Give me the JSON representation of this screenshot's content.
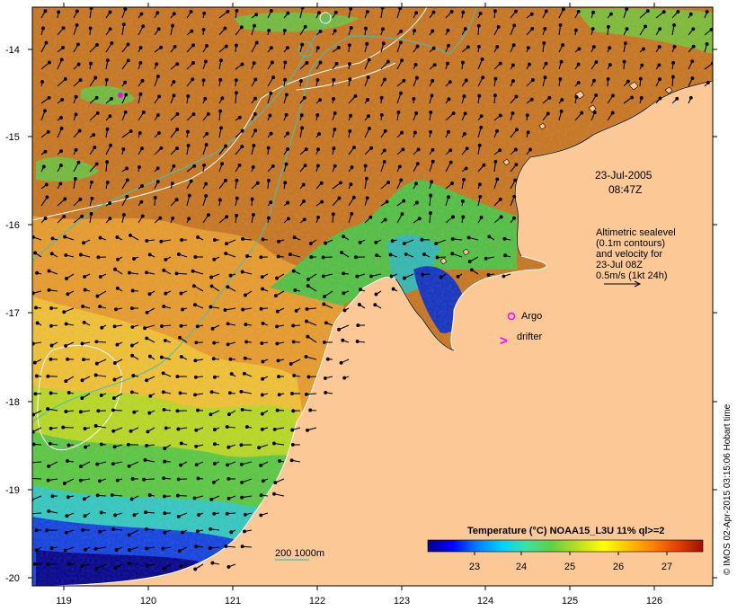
{
  "map": {
    "lon_ticks": [
      "119",
      "120",
      "121",
      "122",
      "123",
      "124",
      "125",
      "126"
    ],
    "lat_ticks": [
      "-14",
      "-15",
      "-16",
      "-17",
      "-18",
      "-19",
      "-20"
    ],
    "land_color": "#fcc996",
    "ocean_warm_color": "#c8741c"
  },
  "annotations": {
    "date": "23-Jul-2005",
    "time": "08:47Z",
    "altimetry_lines": [
      "Altimetric sealevel",
      "(0.1m contours)",
      "and velocity for",
      "23-Jul 08Z",
      "0.5m/s (1kt 24h)"
    ],
    "argo_label": "Argo",
    "drifter_label": "drifter",
    "drifter_symbol": ">",
    "depth_label": "200  1000m",
    "depth_line_color": "#40c0c0",
    "marker_color": "#ff00ff"
  },
  "colorbar": {
    "title": "Temperature (°C) NOAA15_L3U 11% ql>=2",
    "ticks": [
      "23",
      "24",
      "25",
      "26",
      "27"
    ],
    "colors": [
      "#00008b",
      "#0000ff",
      "#0080ff",
      "#00d0ff",
      "#40e0a0",
      "#60d040",
      "#c0e020",
      "#ffff00",
      "#ffc000",
      "#ff8000",
      "#e04000",
      "#a01000"
    ]
  },
  "credit": "© IMOS 02-Apr-2015 03:15:06 Hobart time"
}
